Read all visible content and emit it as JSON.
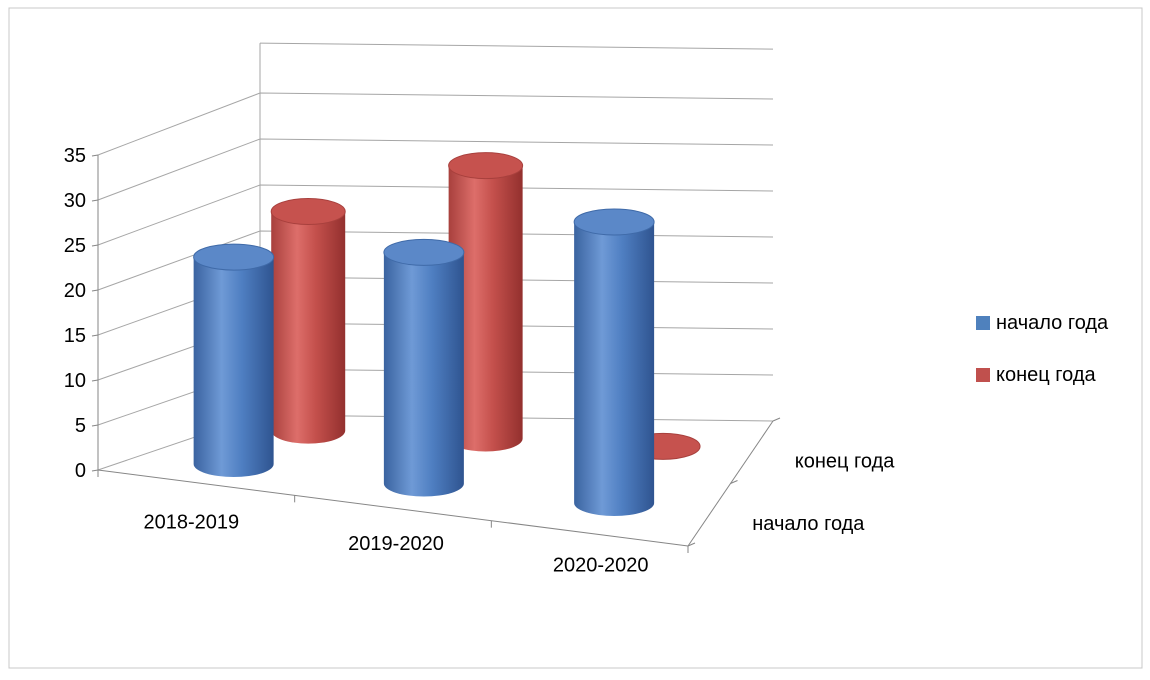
{
  "chart_data": {
    "type": "bar",
    "style": "3d-cylinder",
    "categories": [
      "2018-2019",
      "2019-2020",
      "2020-2020"
    ],
    "series": [
      {
        "name": "начало года",
        "color": "#4f81bd",
        "values": [
          23,
          26,
          32
        ]
      },
      {
        "name": "конец года",
        "color": "#c0504d",
        "values": [
          24,
          30,
          0
        ]
      }
    ],
    "depth_labels": [
      "начало года",
      "конец года"
    ],
    "y_ticks": [
      0,
      5,
      10,
      15,
      20,
      25,
      30,
      35
    ],
    "ylim": [
      0,
      35
    ],
    "grid": true,
    "legend_position": "right"
  }
}
